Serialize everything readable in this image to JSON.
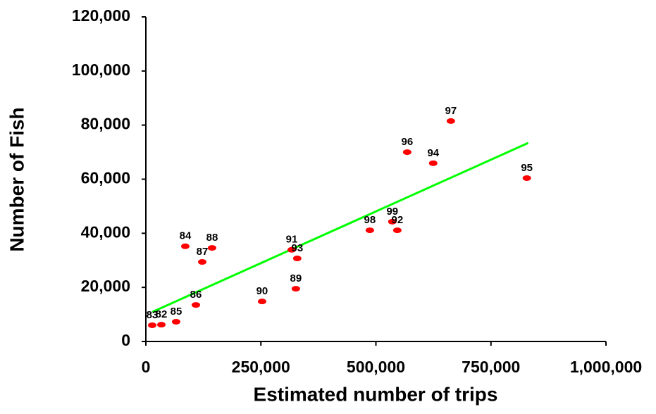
{
  "chart_data": {
    "type": "scatter",
    "x_label": "Estimated number of trips",
    "y_label": "Number of Fish",
    "x": [
      13800,
      33700,
      65800,
      108700,
      85700,
      122500,
      143900,
      252600,
      317000,
      329000,
      326000,
      486800,
      535700,
      546500,
      568000,
      624500,
      662900,
      828000
    ],
    "values": [
      6000,
      6200,
      7300,
      13500,
      35200,
      29400,
      34600,
      14800,
      33900,
      30700,
      19500,
      41100,
      44300,
      41100,
      70000,
      65900,
      81500,
      60400
    ],
    "point_labels": [
      "83",
      "82",
      "85",
      "86",
      "84",
      "87",
      "88",
      "90",
      "91",
      "93",
      "89",
      "98",
      "99",
      "92",
      "96",
      "94",
      "97",
      "95"
    ],
    "color": "#ff0000",
    "trend": {
      "x": [
        13800,
        831000
      ],
      "values": [
        10900,
        73400
      ],
      "color": "#00ff00"
    },
    "xlim": [
      0,
      1000000
    ],
    "ylim": [
      0,
      120000
    ],
    "xticks": [
      0,
      {
        "value": 250000,
        "label": "250,000"
      },
      {
        "value": 500000,
        "label": "500,000"
      },
      {
        "value": 750000,
        "label": "750,000"
      },
      {
        "value": 1000000,
        "label": "1,000,000"
      }
    ],
    "yticks": [
      0,
      {
        "value": 20000,
        "label": "20,000"
      },
      {
        "value": 40000,
        "label": "40,000"
      },
      {
        "value": 60000,
        "label": "60,000"
      },
      {
        "value": 80000,
        "label": "80,000"
      },
      {
        "value": 100000,
        "label": "100,000"
      },
      {
        "value": 120000,
        "label": "120,000"
      }
    ],
    "grid": false
  }
}
